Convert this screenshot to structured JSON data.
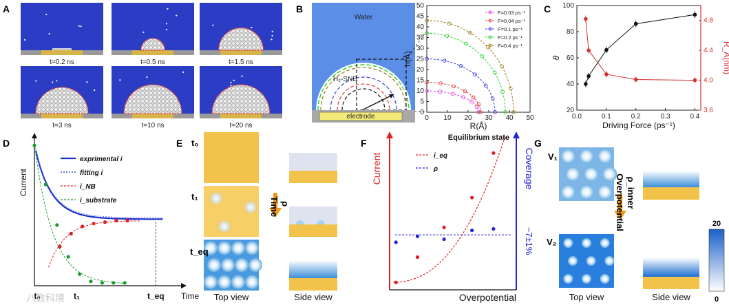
{
  "panel_labels": {
    "a": "A",
    "b": "B",
    "c": "C",
    "d": "D",
    "e": "E",
    "f": "F",
    "g": "G"
  },
  "panel_a": {
    "times": [
      "t=0.2 ns",
      "t=0.5 ns",
      "t=1.5 ns",
      "t=3 ns",
      "t=10 ns",
      "t=20 ns"
    ],
    "droplet_fraction": [
      0.02,
      0.35,
      0.75,
      0.9,
      1.0,
      1.0
    ]
  },
  "panel_b": {
    "water_label": "Water",
    "bubble_label": "H₂-SNB",
    "electrode_label": "electrode"
  },
  "chart_data": [
    {
      "panel": "B",
      "type": "line",
      "title": "",
      "xlabel": "R(Å)",
      "ylabel": "h(Å)",
      "xlim": [
        0,
        50
      ],
      "ylim": [
        0,
        50
      ],
      "xticks": [
        0,
        10,
        20,
        30,
        40,
        50
      ],
      "yticks": [
        0,
        5,
        10,
        15,
        20,
        25,
        30,
        35,
        40,
        45,
        50
      ],
      "series": [
        {
          "name": "F=0.03 ps⁻¹",
          "color": "#e040e0",
          "radius": 25,
          "height": 10
        },
        {
          "name": "F=0.04 ps⁻¹",
          "color": "#e23b3b",
          "radius": 26,
          "height": 14
        },
        {
          "name": "F=0.1 ps⁻¹",
          "color": "#3b3be2",
          "radius": 33,
          "height": 25
        },
        {
          "name": "F=0.2 ps⁻¹",
          "color": "#2fd12f",
          "radius": 38,
          "height": 37
        },
        {
          "name": "F=0.4 ps⁻¹",
          "color": "#9a7a12",
          "radius": 42,
          "height": 43
        }
      ]
    },
    {
      "panel": "C",
      "type": "line",
      "title": "",
      "xlabel": "Driving Force (ps⁻¹)",
      "ylabel": "θ",
      "y2label": "R_A(nm)",
      "xlim": [
        0,
        0.42
      ],
      "ylim": [
        20,
        100
      ],
      "y2lim": [
        3.6,
        5.0
      ],
      "xticks": [
        "0.0",
        "0.1",
        "0.2",
        "0.3",
        "0.4"
      ],
      "yticks": [
        "20",
        "40",
        "60",
        "80",
        "100"
      ],
      "y2ticks": [
        "3.6",
        "4.0",
        "4.4",
        "4.8"
      ],
      "x": [
        0.03,
        0.04,
        0.1,
        0.2,
        0.4
      ],
      "series": [
        {
          "name": "θ",
          "axis": "left",
          "color": "#111111",
          "values": [
            40,
            46,
            66,
            86,
            93
          ]
        },
        {
          "name": "R_A",
          "axis": "right",
          "color": "#d43030",
          "values": [
            4.82,
            4.4,
            4.08,
            4.01,
            4.0
          ]
        }
      ]
    },
    {
      "panel": "D",
      "type": "line",
      "xlabel": "Time",
      "ylabel": "Current",
      "ticks": [
        "t₀",
        "t₁",
        "t_eq"
      ],
      "legend": [
        "exprimental i",
        "fitting i",
        "i_NB",
        "i_substrate"
      ],
      "legend_colors": [
        "#1a2fd0",
        "#1a2fd0",
        "#e02020",
        "#1a9a2a"
      ],
      "i_nb_points": [
        [
          0.18,
          0.27
        ],
        [
          0.26,
          0.36
        ],
        [
          0.34,
          0.41
        ],
        [
          0.42,
          0.43
        ],
        [
          0.5,
          0.44
        ],
        [
          0.58,
          0.45
        ],
        [
          0.66,
          0.45
        ]
      ],
      "i_substrate_points": [
        [
          0.0,
          0.97
        ],
        [
          0.08,
          0.7
        ],
        [
          0.16,
          0.42
        ],
        [
          0.24,
          0.2
        ],
        [
          0.32,
          0.08
        ],
        [
          0.4,
          0.03
        ],
        [
          0.48,
          0.02
        ],
        [
          0.56,
          0.02
        ],
        [
          0.64,
          0.02
        ]
      ]
    },
    {
      "panel": "F",
      "type": "scatter",
      "xlabel": "Overpotential",
      "ylabel": "Current",
      "y2label": "Coverage",
      "title": "Equilibrium state",
      "legend": [
        "i_eq",
        "ρ"
      ],
      "coverage_label": "~7±1%",
      "i_eq_points": [
        [
          0.05,
          0.05
        ],
        [
          0.22,
          0.22
        ],
        [
          0.43,
          0.42
        ],
        [
          0.65,
          0.62
        ],
        [
          0.82,
          0.92
        ]
      ],
      "rho_points": [
        [
          0.05,
          0.32
        ],
        [
          0.22,
          0.36
        ],
        [
          0.43,
          0.34
        ],
        [
          0.65,
          0.4
        ],
        [
          0.82,
          0.41
        ]
      ],
      "rho_mean": 0.37
    }
  ],
  "panel_e": {
    "states": [
      "t₀",
      "t₁",
      "t_eq"
    ],
    "arrow_label": "Time",
    "arrow_sub": "ρ",
    "top_view": "Top view",
    "side_view": "Side view"
  },
  "panel_g": {
    "states": [
      "V₁",
      "V₂"
    ],
    "arrow_label": "Overpotential",
    "arrow_sub": "ρ_inner",
    "colorbar_max": "20",
    "colorbar_min": "0",
    "top_view": "Top view",
    "side_view": "Side view"
  },
  "watermark": "八数科境"
}
